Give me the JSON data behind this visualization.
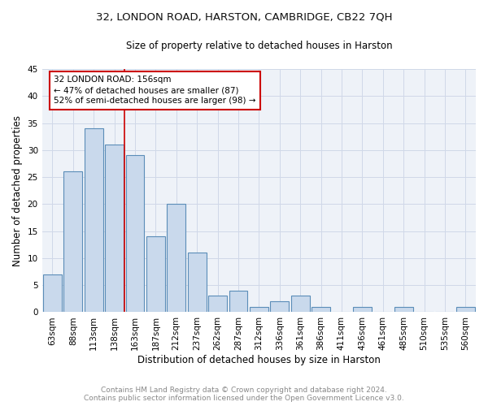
{
  "title1": "32, LONDON ROAD, HARSTON, CAMBRIDGE, CB22 7QH",
  "title2": "Size of property relative to detached houses in Harston",
  "xlabel": "Distribution of detached houses by size in Harston",
  "ylabel": "Number of detached properties",
  "categories": [
    "63sqm",
    "88sqm",
    "113sqm",
    "138sqm",
    "163sqm",
    "187sqm",
    "212sqm",
    "237sqm",
    "262sqm",
    "287sqm",
    "312sqm",
    "336sqm",
    "361sqm",
    "386sqm",
    "411sqm",
    "436sqm",
    "461sqm",
    "485sqm",
    "510sqm",
    "535sqm",
    "560sqm"
  ],
  "values": [
    7,
    26,
    34,
    31,
    29,
    14,
    20,
    11,
    3,
    4,
    1,
    2,
    3,
    1,
    0,
    1,
    0,
    1,
    0,
    0,
    1
  ],
  "bar_color": "#c9d9ec",
  "bar_edgecolor": "#5b8db8",
  "bar_linewidth": 0.8,
  "vline_index": 4,
  "vline_color": "#cc0000",
  "vline_linewidth": 1.2,
  "annotation_line1": "32 LONDON ROAD: 156sqm",
  "annotation_line2": "← 47% of detached houses are smaller (87)",
  "annotation_line3": "52% of semi-detached houses are larger (98) →",
  "annotation_fontsize": 7.5,
  "annotation_box_color": "#cc0000",
  "ylim": [
    0,
    45
  ],
  "yticks": [
    0,
    5,
    10,
    15,
    20,
    25,
    30,
    35,
    40,
    45
  ],
  "grid_color": "#d0d8e8",
  "background_color": "#eef2f8",
  "title1_fontsize": 9.5,
  "title2_fontsize": 8.5,
  "xlabel_fontsize": 8.5,
  "ylabel_fontsize": 8.5,
  "tick_fontsize": 7.5,
  "footer_line1": "Contains HM Land Registry data © Crown copyright and database right 2024.",
  "footer_line2": "Contains public sector information licensed under the Open Government Licence v3.0.",
  "footer_fontsize": 6.5,
  "footer_color": "#888888"
}
